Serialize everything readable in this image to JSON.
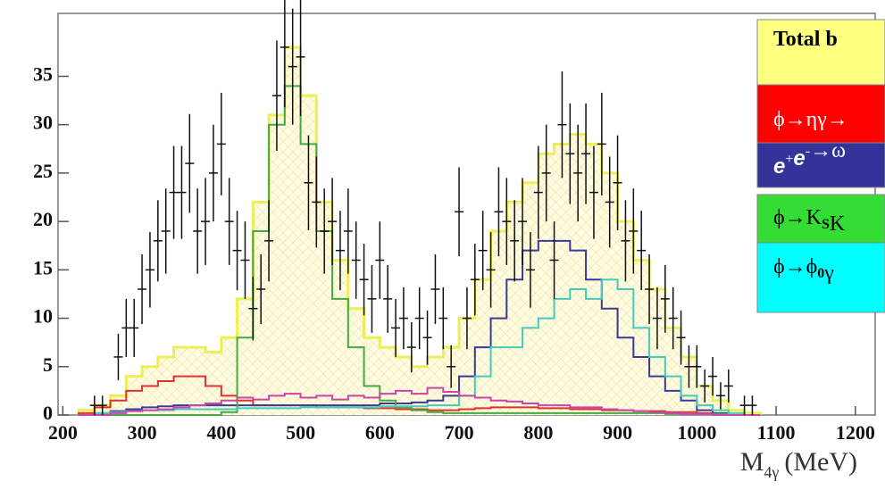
{
  "chart_data": {
    "type": "histogram",
    "x_label": {
      "main": "M",
      "sub": "4γ",
      "unit": "(MeV)"
    },
    "xlim": [
      194,
      1225
    ],
    "ylim": [
      0,
      41.5
    ],
    "xticks": [
      200,
      300,
      400,
      500,
      600,
      700,
      800,
      900,
      1000,
      1100,
      1200
    ],
    "yticks": [
      0,
      5,
      10,
      15,
      20,
      25,
      30,
      35
    ],
    "bins": [
      220,
      240,
      260,
      280,
      300,
      320,
      340,
      360,
      380,
      400,
      420,
      440,
      460,
      480,
      500,
      520,
      540,
      560,
      580,
      600,
      620,
      640,
      660,
      680,
      700,
      720,
      740,
      760,
      780,
      800,
      820,
      840,
      860,
      880,
      900,
      920,
      940,
      960,
      980,
      1000,
      1020,
      1040,
      1060,
      1080
    ],
    "series": [
      {
        "name_parts": [
          {
            "text": "Total b"
          }
        ],
        "color": "#eeee55",
        "legend_color": "#ffff80",
        "legend_text_color": "#000000",
        "filled": true,
        "values": [
          0.5,
          1,
          2,
          4,
          5,
          6,
          7,
          7,
          6.5,
          8,
          12,
          22,
          31,
          38,
          33,
          22,
          16,
          11,
          8,
          7,
          6,
          5,
          6,
          7,
          10,
          14,
          19,
          22,
          24,
          27,
          28,
          29,
          28,
          25,
          20,
          16,
          13,
          9,
          6,
          3,
          1.5,
          0.5,
          0.2
        ]
      },
      {
        "name_parts": [
          {
            "text": "ϕ→ηγ→"
          }
        ],
        "color": "#e03030",
        "legend_color": "#ff0000",
        "legend_text_color": "#ffffff",
        "values": [
          0.2,
          0.8,
          1.5,
          2.5,
          3,
          3.5,
          4,
          4,
          3,
          2,
          1.5,
          1,
          1,
          1,
          1,
          0.8,
          0.8,
          0.8,
          0.7,
          0.7,
          0.6,
          0.6,
          0.5,
          0.5,
          0.6,
          0.7,
          0.8,
          0.8,
          0.8,
          0.7,
          0.7,
          0.6,
          0.6,
          0.5,
          0.5,
          0.4,
          0.4,
          0.3,
          0.3,
          0.2,
          0.1,
          0,
          0
        ]
      },
      {
        "name_parts": [
          {
            "text": "e",
            "italic": true
          },
          {
            "text": "+",
            "sup": true
          },
          {
            "text": "e",
            "italic": true
          },
          {
            "text": "-",
            "sup": true
          },
          {
            "text": "→ω"
          }
        ],
        "color": "#3a3a9a",
        "legend_color": "#333399",
        "legend_text_color": "#ffffff",
        "values": [
          0,
          0.2,
          0.4,
          0.6,
          0.8,
          0.9,
          1,
          1,
          1,
          1,
          1,
          1,
          1,
          1,
          1,
          1,
          1,
          1,
          1,
          1.2,
          1.2,
          1.3,
          1.5,
          2,
          4,
          7,
          10,
          14,
          17,
          18,
          18,
          17,
          14,
          11,
          8,
          6,
          4,
          2.5,
          1.5,
          0.5,
          0.2,
          0,
          0
        ]
      },
      {
        "name_parts": [
          {
            "text": "ϕ→K"
          },
          {
            "text": "S",
            "sub": true
          },
          {
            "text": "K"
          }
        ],
        "color": "#44aa44",
        "legend_color": "#33dd33",
        "legend_text_color": "#000000",
        "values": [
          0,
          0,
          0,
          0,
          0,
          0,
          0,
          0,
          0,
          0.3,
          8,
          19,
          30,
          34,
          28,
          19,
          12,
          7,
          3,
          1.5,
          0.8,
          0.5,
          0.3,
          0.2,
          0.2,
          0.2,
          0.2,
          0.2,
          0.2,
          0.2,
          0.2,
          0.2,
          0.2,
          0.2,
          0.2,
          0.2,
          0.2,
          0.1,
          0.1,
          0.1,
          0.1,
          0,
          0
        ]
      },
      {
        "name_parts": [
          {
            "text": "ϕ→ϕ"
          },
          {
            "text": "0",
            "sub": true
          },
          {
            "text": "γ"
          }
        ],
        "color": "#44ccbb",
        "legend_color": "#00ffff",
        "legend_text_color": "#000000",
        "values": [
          0,
          0.2,
          0.3,
          0.4,
          0.5,
          0.5,
          0.6,
          0.6,
          0.6,
          0.6,
          0.7,
          0.7,
          0.7,
          0.7,
          0.8,
          0.8,
          0.8,
          0.8,
          0.8,
          0.9,
          0.9,
          0.9,
          1,
          1,
          2,
          4,
          7,
          7,
          9,
          10,
          12,
          13,
          12,
          14,
          13,
          9,
          6,
          4,
          2,
          1,
          0.5,
          0.2,
          0
        ]
      },
      {
        "color": "#cc44aa",
        "values": [
          0,
          0,
          0.2,
          0.4,
          0.5,
          0.6,
          0.8,
          1,
          1.2,
          1.5,
          1.8,
          1.6,
          2,
          2.2,
          1.8,
          2,
          1.6,
          2,
          1.8,
          2.2,
          2.5,
          2.2,
          2.8,
          2.4,
          2,
          1.8,
          1.5,
          1.4,
          1.2,
          1,
          1,
          0.8,
          0.8,
          0.6,
          0.5,
          0.4,
          0.3,
          0.2,
          0.1,
          0.1,
          0,
          0,
          0
        ]
      }
    ],
    "points": {
      "color": "#111111",
      "x": [
        240,
        250,
        270,
        280,
        290,
        300,
        310,
        320,
        330,
        340,
        350,
        360,
        370,
        380,
        390,
        400,
        410,
        420,
        430,
        440,
        450,
        460,
        470,
        480,
        490,
        500,
        510,
        520,
        530,
        540,
        550,
        560,
        570,
        580,
        590,
        600,
        610,
        620,
        630,
        640,
        650,
        660,
        670,
        680,
        690,
        700,
        710,
        720,
        730,
        740,
        750,
        760,
        770,
        780,
        790,
        800,
        810,
        820,
        830,
        840,
        850,
        860,
        870,
        880,
        890,
        900,
        910,
        920,
        930,
        940,
        950,
        960,
        970,
        980,
        990,
        1000,
        1010,
        1020,
        1030,
        1040,
        1060,
        1070
      ],
      "values": [
        1,
        1,
        6,
        9,
        9,
        13,
        15,
        18,
        19,
        23,
        23,
        26,
        19,
        20,
        25,
        28,
        20,
        17,
        16,
        11,
        13,
        18,
        33,
        38,
        36,
        37,
        24,
        22,
        19,
        20,
        17,
        19,
        16,
        14,
        12,
        16,
        12,
        9,
        10,
        7,
        10,
        8,
        13,
        10,
        5,
        21,
        10,
        14,
        17,
        15,
        21,
        20,
        18,
        20,
        15,
        23,
        25,
        16,
        30,
        27,
        25,
        27,
        23,
        28,
        22,
        24,
        18,
        19,
        17,
        13,
        10,
        12,
        10,
        8,
        5,
        5,
        3,
        4,
        2,
        3,
        1,
        1
      ],
      "errors": [
        1,
        1,
        2.4,
        3,
        3,
        3.6,
        3.9,
        4.2,
        4.4,
        4.8,
        4.8,
        5.1,
        4.4,
        4.5,
        5,
        5.3,
        4.5,
        4.1,
        4,
        3.3,
        3.6,
        4.2,
        5.7,
        6.2,
        6,
        6.1,
        4.9,
        4.7,
        4.4,
        4.5,
        4.1,
        4.4,
        4,
        3.7,
        3.5,
        4,
        3.5,
        3,
        3.2,
        2.6,
        3.2,
        2.8,
        3.6,
        3.2,
        2.2,
        4.6,
        3.2,
        3.7,
        4.1,
        3.9,
        4.6,
        4.5,
        4.2,
        4.5,
        3.9,
        4.8,
        5,
        4,
        5.5,
        5.2,
        5,
        5.2,
        4.8,
        5.3,
        4.7,
        4.9,
        4.2,
        4.4,
        4.1,
        3.6,
        3.2,
        3.5,
        3.2,
        2.8,
        2.2,
        2.2,
        1.7,
        2,
        1.4,
        1.7,
        1,
        1
      ]
    }
  }
}
